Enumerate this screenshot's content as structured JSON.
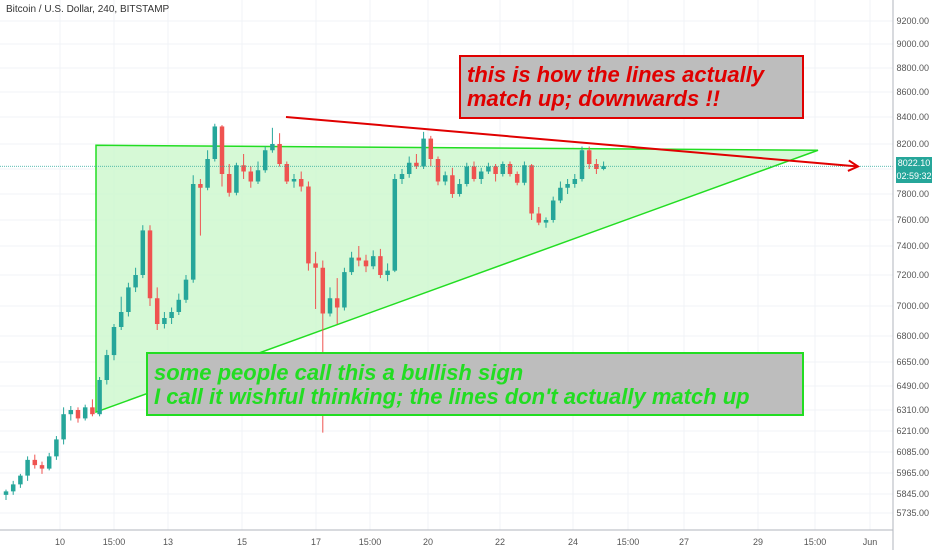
{
  "chart_data": {
    "type": "candlestick",
    "title": "Bitcoin / U.S. Dollar, 240, BITSTAMP",
    "y_ticks": [
      "9200.00",
      "9000.00",
      "8800.00",
      "8600.00",
      "8400.00",
      "8200.00",
      "8000.00",
      "7800.00",
      "7600.00",
      "7400.00",
      "7200.00",
      "7000.00",
      "6800.00",
      "6650.00",
      "6490.00",
      "6310.00",
      "6210.00",
      "6085.00",
      "5965.00",
      "5845.00",
      "5735.00"
    ],
    "x_ticks": [
      "10",
      "15:00",
      "13",
      "15",
      "17",
      "15:00",
      "20",
      "22",
      "24",
      "15:00",
      "27",
      "29",
      "15:00",
      "Jun"
    ],
    "last_price": "8022.10",
    "countdown": "02:59:32",
    "colors": {
      "up": "#26a69a",
      "down": "#ef5350",
      "triangle_line": "#22dd22",
      "triangle_fill": "#ccf7cc",
      "red_line": "#e00000"
    },
    "candles": [
      {
        "o": 5840,
        "h": 5870,
        "l": 5810,
        "c": 5860
      },
      {
        "o": 5860,
        "h": 5920,
        "l": 5840,
        "c": 5900
      },
      {
        "o": 5900,
        "h": 5960,
        "l": 5880,
        "c": 5950
      },
      {
        "o": 5950,
        "h": 6060,
        "l": 5920,
        "c": 6040
      },
      {
        "o": 6040,
        "h": 6070,
        "l": 5990,
        "c": 6010
      },
      {
        "o": 6010,
        "h": 6030,
        "l": 5960,
        "c": 5990
      },
      {
        "o": 5990,
        "h": 6080,
        "l": 5980,
        "c": 6060
      },
      {
        "o": 6060,
        "h": 6180,
        "l": 6040,
        "c": 6160
      },
      {
        "o": 6160,
        "h": 6330,
        "l": 6130,
        "c": 6290
      },
      {
        "o": 6290,
        "h": 6340,
        "l": 6260,
        "c": 6310
      },
      {
        "o": 6310,
        "h": 6330,
        "l": 6250,
        "c": 6270
      },
      {
        "o": 6270,
        "h": 6350,
        "l": 6260,
        "c": 6330
      },
      {
        "o": 6330,
        "h": 6390,
        "l": 6280,
        "c": 6290
      },
      {
        "o": 6290,
        "h": 6550,
        "l": 6280,
        "c": 6530
      },
      {
        "o": 6530,
        "h": 6720,
        "l": 6500,
        "c": 6690
      },
      {
        "o": 6690,
        "h": 6880,
        "l": 6660,
        "c": 6860
      },
      {
        "o": 6860,
        "h": 7060,
        "l": 6840,
        "c": 6960
      },
      {
        "o": 6960,
        "h": 7150,
        "l": 6930,
        "c": 7120
      },
      {
        "o": 7120,
        "h": 7250,
        "l": 7090,
        "c": 7200
      },
      {
        "o": 7200,
        "h": 7560,
        "l": 7180,
        "c": 7520
      },
      {
        "o": 7520,
        "h": 7560,
        "l": 7000,
        "c": 7050
      },
      {
        "o": 7050,
        "h": 7120,
        "l": 6840,
        "c": 6880
      },
      {
        "o": 6880,
        "h": 6960,
        "l": 6850,
        "c": 6920
      },
      {
        "o": 6920,
        "h": 6990,
        "l": 6880,
        "c": 6960
      },
      {
        "o": 6960,
        "h": 7080,
        "l": 6940,
        "c": 7040
      },
      {
        "o": 7040,
        "h": 7200,
        "l": 7020,
        "c": 7170
      },
      {
        "o": 7170,
        "h": 7950,
        "l": 7150,
        "c": 7880
      },
      {
        "o": 7880,
        "h": 7920,
        "l": 7480,
        "c": 7850
      },
      {
        "o": 7850,
        "h": 8150,
        "l": 7830,
        "c": 8080
      },
      {
        "o": 8080,
        "h": 8350,
        "l": 8060,
        "c": 8330
      },
      {
        "o": 8330,
        "h": 8340,
        "l": 7860,
        "c": 7960
      },
      {
        "o": 7960,
        "h": 8040,
        "l": 7780,
        "c": 7810
      },
      {
        "o": 7810,
        "h": 8050,
        "l": 7790,
        "c": 8030
      },
      {
        "o": 8030,
        "h": 8120,
        "l": 7920,
        "c": 7980
      },
      {
        "o": 7980,
        "h": 8020,
        "l": 7850,
        "c": 7900
      },
      {
        "o": 7900,
        "h": 8060,
        "l": 7880,
        "c": 7990
      },
      {
        "o": 7990,
        "h": 8180,
        "l": 7970,
        "c": 8150
      },
      {
        "o": 8150,
        "h": 8320,
        "l": 8130,
        "c": 8200
      },
      {
        "o": 8200,
        "h": 8280,
        "l": 8020,
        "c": 8040
      },
      {
        "o": 8040,
        "h": 8060,
        "l": 7880,
        "c": 7900
      },
      {
        "o": 7900,
        "h": 7960,
        "l": 7850,
        "c": 7920
      },
      {
        "o": 7920,
        "h": 7980,
        "l": 7820,
        "c": 7860
      },
      {
        "o": 7860,
        "h": 7900,
        "l": 7230,
        "c": 7280
      },
      {
        "o": 7280,
        "h": 7360,
        "l": 6980,
        "c": 7250
      },
      {
        "o": 7250,
        "h": 7300,
        "l": 6200,
        "c": 6950
      },
      {
        "o": 6950,
        "h": 7120,
        "l": 6930,
        "c": 7050
      },
      {
        "o": 7050,
        "h": 7180,
        "l": 6880,
        "c": 6990
      },
      {
        "o": 6990,
        "h": 7250,
        "l": 6970,
        "c": 7220
      },
      {
        "o": 7220,
        "h": 7360,
        "l": 7200,
        "c": 7320
      },
      {
        "o": 7320,
        "h": 7400,
        "l": 7260,
        "c": 7300
      },
      {
        "o": 7300,
        "h": 7340,
        "l": 7220,
        "c": 7260
      },
      {
        "o": 7260,
        "h": 7370,
        "l": 7240,
        "c": 7330
      },
      {
        "o": 7330,
        "h": 7380,
        "l": 7180,
        "c": 7200
      },
      {
        "o": 7200,
        "h": 7280,
        "l": 7160,
        "c": 7230
      },
      {
        "o": 7230,
        "h": 7960,
        "l": 7220,
        "c": 7920
      },
      {
        "o": 7920,
        "h": 8000,
        "l": 7880,
        "c": 7960
      },
      {
        "o": 7960,
        "h": 8100,
        "l": 7930,
        "c": 8050
      },
      {
        "o": 8050,
        "h": 8120,
        "l": 8000,
        "c": 8020
      },
      {
        "o": 8020,
        "h": 8290,
        "l": 8000,
        "c": 8240
      },
      {
        "o": 8240,
        "h": 8260,
        "l": 8020,
        "c": 8080
      },
      {
        "o": 8080,
        "h": 8100,
        "l": 7870,
        "c": 7900
      },
      {
        "o": 7900,
        "h": 7980,
        "l": 7870,
        "c": 7950
      },
      {
        "o": 7950,
        "h": 8010,
        "l": 7770,
        "c": 7800
      },
      {
        "o": 7800,
        "h": 7920,
        "l": 7780,
        "c": 7880
      },
      {
        "o": 7880,
        "h": 8050,
        "l": 7860,
        "c": 8020
      },
      {
        "o": 8020,
        "h": 8060,
        "l": 7900,
        "c": 7920
      },
      {
        "o": 7920,
        "h": 8010,
        "l": 7880,
        "c": 7980
      },
      {
        "o": 7980,
        "h": 8050,
        "l": 7960,
        "c": 8020
      },
      {
        "o": 8020,
        "h": 8040,
        "l": 7900,
        "c": 7960
      },
      {
        "o": 7960,
        "h": 8060,
        "l": 7940,
        "c": 8040
      },
      {
        "o": 8040,
        "h": 8060,
        "l": 7940,
        "c": 7960
      },
      {
        "o": 7960,
        "h": 7980,
        "l": 7870,
        "c": 7890
      },
      {
        "o": 7890,
        "h": 8060,
        "l": 7870,
        "c": 8030
      },
      {
        "o": 8030,
        "h": 8040,
        "l": 7600,
        "c": 7650
      },
      {
        "o": 7650,
        "h": 7700,
        "l": 7560,
        "c": 7580
      },
      {
        "o": 7580,
        "h": 7620,
        "l": 7540,
        "c": 7600
      },
      {
        "o": 7600,
        "h": 7780,
        "l": 7580,
        "c": 7750
      },
      {
        "o": 7750,
        "h": 7900,
        "l": 7730,
        "c": 7850
      },
      {
        "o": 7850,
        "h": 7920,
        "l": 7800,
        "c": 7880
      },
      {
        "o": 7880,
        "h": 7960,
        "l": 7850,
        "c": 7920
      },
      {
        "o": 7920,
        "h": 8180,
        "l": 7900,
        "c": 8150
      },
      {
        "o": 8150,
        "h": 8180,
        "l": 8000,
        "c": 8040
      },
      {
        "o": 8040,
        "h": 8080,
        "l": 7960,
        "c": 8000
      },
      {
        "o": 8000,
        "h": 8060,
        "l": 7990,
        "c": 8022.1
      }
    ]
  },
  "annotations": {
    "red_box": [
      "this is how the lines actually",
      "match up; downwards !!"
    ],
    "green_box": [
      "some people call this a bullish sign",
      "I call it wishful thinking; the lines don't actually match up"
    ]
  }
}
